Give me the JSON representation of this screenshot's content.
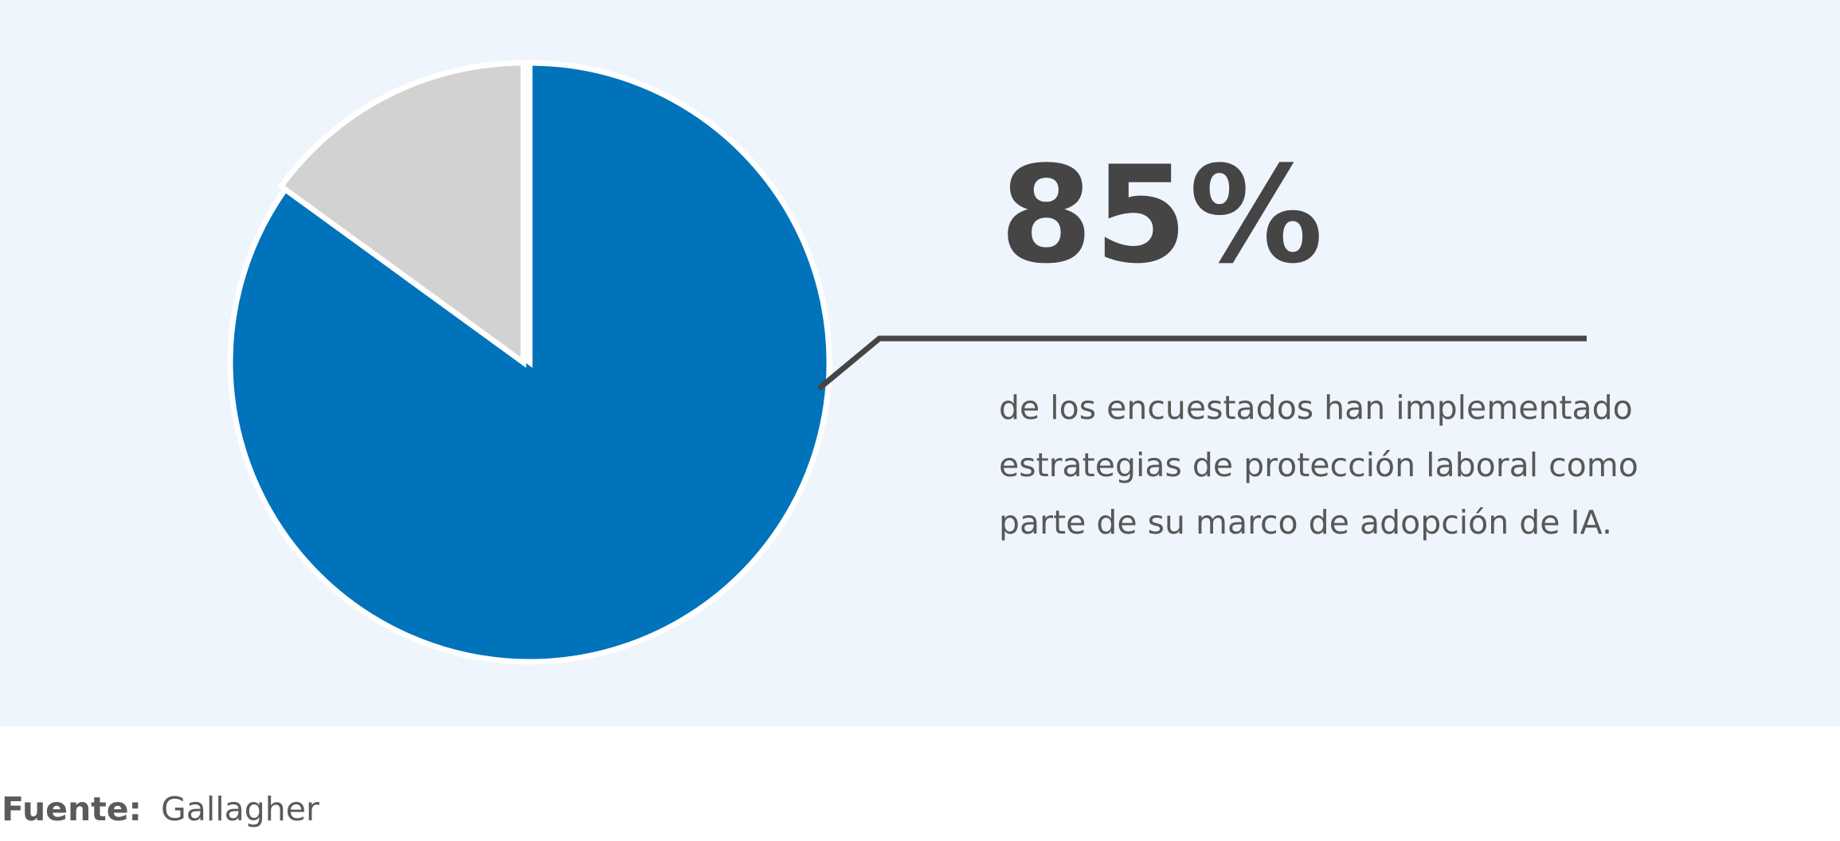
{
  "chart_data": {
    "type": "pie",
    "categories": [
      "",
      ""
    ],
    "values": [
      85,
      15
    ],
    "colors": [
      "#0073bb",
      "#d2d2d2"
    ],
    "highlight_label": "85%",
    "annotation_lines": [
      "de los encuestados han implementado",
      "estrategias de protección laboral como",
      "parte de su marco de adopción de IA."
    ]
  },
  "footer": {
    "source_label": "Fuente:",
    "source_value": "Gallagher"
  },
  "colors": {
    "panel_background": "#eff5fc",
    "text_dark": "#454545",
    "text_body": "#585858",
    "leader_line": "#454545"
  }
}
